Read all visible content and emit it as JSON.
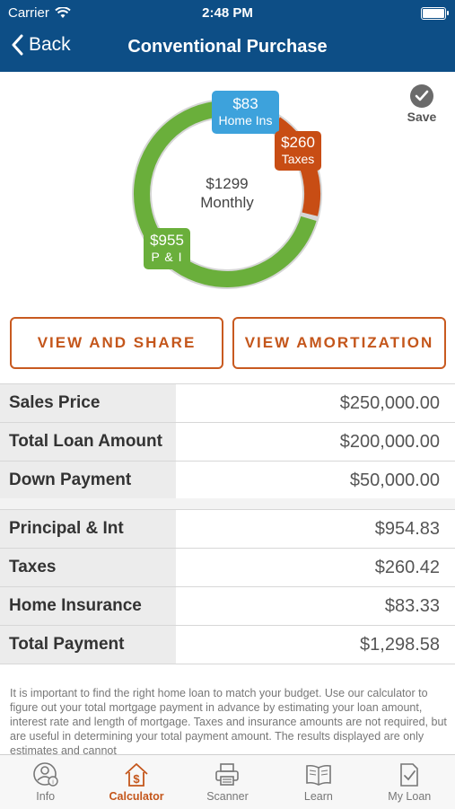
{
  "status": {
    "carrier": "Carrier",
    "time": "2:48 PM"
  },
  "nav": {
    "back_label": "Back",
    "title": "Conventional Purchase"
  },
  "chart": {
    "center_amount": "$1299",
    "center_label": "Monthly",
    "segments": [
      {
        "name": "Home Ins",
        "amount": "$83",
        "value": 83.33,
        "color": "#3da2dc"
      },
      {
        "name": "Taxes",
        "amount": "$260",
        "value": 260.42,
        "color": "#c84d14"
      },
      {
        "name": "P & I",
        "amount": "$955",
        "value": 954.83,
        "color": "#6aaf3b"
      }
    ]
  },
  "save_label": "Save",
  "buttons": {
    "view_share": "VIEW AND SHARE",
    "view_amortization": "VIEW AMORTIZATION"
  },
  "loan_rows": [
    {
      "label": "Sales Price",
      "value": "$250,000.00"
    },
    {
      "label": "Total Loan Amount",
      "value": "$200,000.00"
    },
    {
      "label": "Down Payment",
      "value": "$50,000.00"
    }
  ],
  "payment_rows": [
    {
      "label": "Principal & Int",
      "value": "$954.83"
    },
    {
      "label": "Taxes",
      "value": "$260.42"
    },
    {
      "label": "Home Insurance",
      "value": "$83.33"
    },
    {
      "label": "Total Payment",
      "value": "$1,298.58"
    }
  ],
  "disclaimer": "It is important to find the right home loan to match your budget. Use our calculator to figure out your total mortgage payment in advance by estimating your loan amount, interest rate and length of mortgage. Taxes and insurance amounts are not required, but are useful in determining your total payment amount. The results displayed are only estimates and cannot",
  "tabs": [
    {
      "label": "Info",
      "icon": "info-person-icon",
      "active": false
    },
    {
      "label": "Calculator",
      "icon": "calculator-house-dollar-icon",
      "active": true
    },
    {
      "label": "Scanner",
      "icon": "printer-icon",
      "active": false
    },
    {
      "label": "Learn",
      "icon": "book-icon",
      "active": false
    },
    {
      "label": "My Loan",
      "icon": "document-check-icon",
      "active": false
    }
  ],
  "colors": {
    "nav_bg": "#0d4e86",
    "accent": "#c4561b",
    "row_label_bg": "#ececec"
  }
}
